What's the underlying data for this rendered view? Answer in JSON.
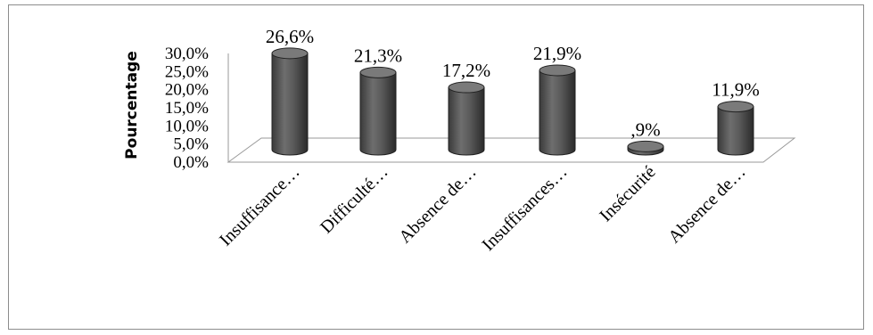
{
  "chart_data": {
    "type": "bar",
    "ylabel": "Pourcentage",
    "xlabel": "",
    "title": "",
    "categories": [
      "Insuffisance…",
      "Difficulté…",
      "Absence de…",
      "Insuffisances…",
      "Insécurité",
      "Absence de…"
    ],
    "values": [
      26.6,
      21.3,
      17.2,
      21.9,
      0.9,
      11.9
    ],
    "value_labels": [
      "26,6%",
      "21,3%",
      "17,2%",
      "21,9%",
      ",9%",
      "11,9%"
    ],
    "yticks": [
      "0,0%",
      "5,0%",
      "10,0%",
      "15,0%",
      "20,0%",
      "25,0%",
      "30,0%"
    ],
    "ylim": [
      0,
      30
    ],
    "grid": false,
    "legend": "none",
    "bar_color": "#595959"
  }
}
